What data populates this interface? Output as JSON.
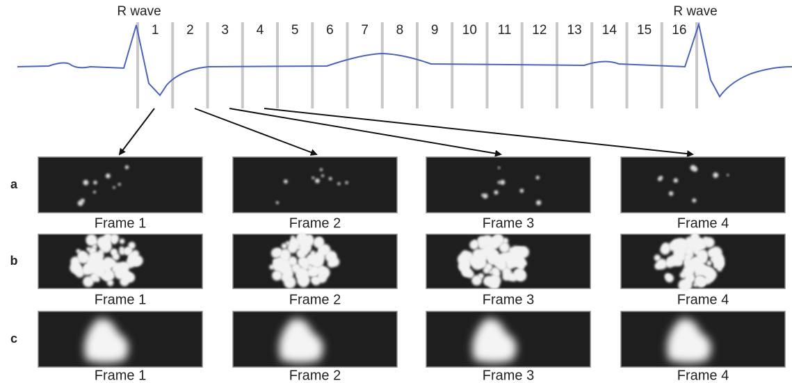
{
  "ecg": {
    "r_wave_labels": [
      "R wave",
      "R wave"
    ],
    "intervals": [
      "1",
      "2",
      "3",
      "4",
      "5",
      "6",
      "7",
      "8",
      "9",
      "10",
      "11",
      "12",
      "13",
      "14",
      "15",
      "16"
    ]
  },
  "rows": [
    {
      "label": "a",
      "frames": [
        "Frame 1",
        "Frame 2",
        "Frame 3",
        "Frame 4"
      ]
    },
    {
      "label": "b",
      "frames": [
        "Frame 1",
        "Frame 2",
        "Frame 3",
        "Frame 4"
      ]
    },
    {
      "label": "c",
      "frames": [
        "Frame 1",
        "Frame 2",
        "Frame 3",
        "Frame 4"
      ]
    }
  ]
}
